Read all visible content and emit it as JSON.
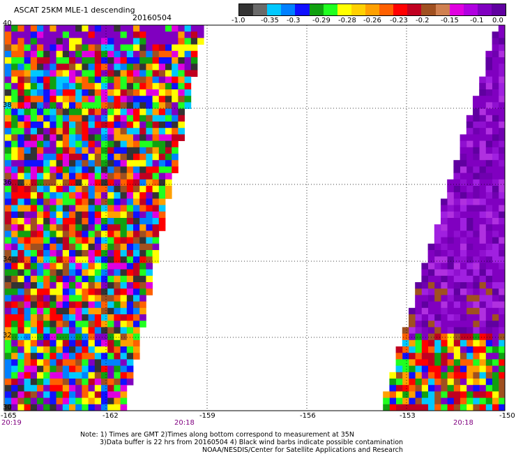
{
  "header": {
    "title": "ASCAT 25KM MLE-1 descending",
    "date": "20160504"
  },
  "colorbar": {
    "labels": [
      "-1.0",
      "-0.35",
      "-0.3",
      "-0.29",
      "-0.28",
      "-0.26",
      "-0.23",
      "-0.2",
      "-0.15",
      "-0.1",
      "0.0"
    ],
    "colors": [
      "#333333",
      "#6a6a6a",
      "#00c8ff",
      "#0080ff",
      "#1010ff",
      "#10a010",
      "#20ff20",
      "#ffff00",
      "#ffd000",
      "#ffa000",
      "#ff6000",
      "#ff0000",
      "#c00020",
      "#a05020",
      "#d08050",
      "#e000e0",
      "#b000e0",
      "#8000c0",
      "#6000a0"
    ]
  },
  "axes": {
    "lat_labels": [
      "40",
      "38",
      "36",
      "34",
      "32",
      "30"
    ],
    "lon_labels": [
      "-165",
      "-162",
      "-159",
      "-156",
      "-153",
      "-150"
    ]
  },
  "times": {
    "left": "20:19",
    "mid": "20:18",
    "right": "20:18"
  },
  "notes": {
    "line1": "Note: 1) Times are GMT 2)Times along bottom correspond to measurement at 35N",
    "line2": "3)Data buffer is 22 hrs from 20160504 4) Black wind barbs indicate possible contamination",
    "line3": "NOAA/NESDIS/Center for Satellite Applications and Research"
  },
  "swaths": {
    "west_palette": [
      "#ff0000",
      "#ffff00",
      "#ffa000",
      "#e000e0",
      "#8000c0",
      "#1010ff",
      "#20ff20",
      "#a05020",
      "#c00020",
      "#ff6000",
      "#0080ff",
      "#00c8ff",
      "#333333",
      "#10a010"
    ],
    "east_palette": [
      "#8000c0",
      "#8000c0",
      "#9010d0",
      "#7000b0",
      "#a020e0",
      "#8000c0",
      "#6000a0",
      "#b030e0"
    ],
    "east_south_palette": [
      "#ff0000",
      "#ffff00",
      "#ffa000",
      "#1010ff",
      "#00c8ff",
      "#20ff20",
      "#8000c0",
      "#ff6000",
      "#c00020",
      "#a05020",
      "#10a010"
    ]
  }
}
